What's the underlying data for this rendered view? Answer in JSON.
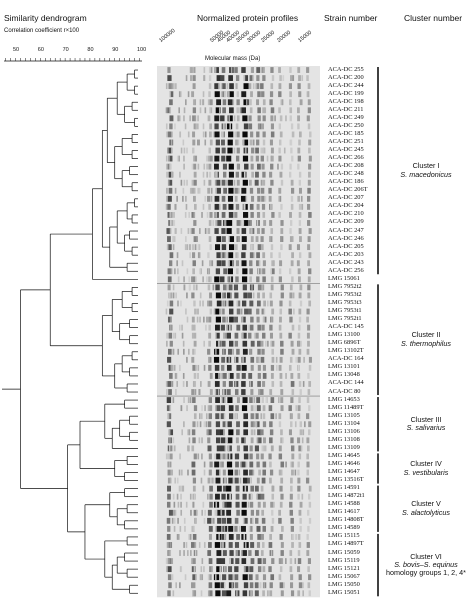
{
  "headers": {
    "dendrogram": "Similarity dendrogram",
    "correlation": "Correlation coefficient r×100",
    "profiles": "Normalized protein profiles",
    "molecular_mass": "Molecular mass (Da)",
    "strain": "Strain number",
    "cluster": "Cluster number"
  },
  "scale_ticks": [
    "50",
    "60",
    "70",
    "80",
    "90",
    "100"
  ],
  "mass_ticks": [
    "100000",
    "50000",
    "45000",
    "40000",
    "35000",
    "30000",
    "25000",
    "20000",
    "15000"
  ],
  "strains": [
    "ACA-DC 255",
    "ACA-DC 200",
    "ACA-DC 244",
    "ACA-DC 199",
    "ACA-DC 198",
    "ACA-DC 211",
    "ACA-DC 249",
    "ACA-DC 250",
    "ACA-DC 185",
    "ACA-DC 251",
    "ACA-DC 245",
    "ACA-DC 266",
    "ACA-DC 208",
    "ACA-DC 248",
    "ACA-DC 186",
    "ACA-DC 206T",
    "ACA-DC 207",
    "ACA-DC 204",
    "ACA-DC 210",
    "ACA-DC 209",
    "ACA-DC 247",
    "ACA-DC 246",
    "ACA-DC 205",
    "ACA-DC 203",
    "ACA-DC 243",
    "ACA-DC 256",
    "LMG 15061",
    "LMG 7952t2",
    "LMG 7953t2",
    "LMG 7953t3",
    "LMG 7953t1",
    "LMG 7952t1",
    "ACA-DC 145",
    "LMG 13100",
    "LMG 6896T",
    "LMG 13102T",
    "ACA-DC 164",
    "LMG 13101",
    "LMG 13048",
    "ACA-DC 144",
    "ACA-DC 80",
    "LMG 14653",
    "LMG 11489T",
    "LMG 13105",
    "LMG 13104",
    "LMG 13106",
    "LMG 13108",
    "LMG 13109",
    "LMG 14645",
    "LMG 14646",
    "LMG 14647",
    "LMG 13516T",
    "LMG 14591",
    "LMG 14872t1",
    "LMG 14588",
    "LMG 14617",
    "LMG 14808T",
    "LMG 14589",
    "LMG 15115",
    "LMG 14897T",
    "LMG 15059",
    "LMG 15119",
    "LMG 15121",
    "LMG 15067",
    "LMG 15050",
    "LMG 15051"
  ],
  "clusters": [
    {
      "name": "Cluster I",
      "species": "S. macedonicus",
      "extra": "",
      "first": 0,
      "last": 25
    },
    {
      "name": "Cluster II",
      "species": "S. thermophilus",
      "extra": "",
      "first": 27,
      "last": 40
    },
    {
      "name": "Cluster III",
      "species": "S. salivarius",
      "extra": "",
      "first": 41,
      "last": 47
    },
    {
      "name": "Cluster IV",
      "species": "S. vestibularis",
      "extra": "",
      "first": 48,
      "last": 51
    },
    {
      "name": "Cluster V",
      "species": "S. alactolyticus",
      "extra": "",
      "first": 52,
      "last": 57
    },
    {
      "name": "Cluster VI",
      "species": "S. bovis–S. equinus",
      "extra": "homology groups 1, 2, 4*",
      "first": 58,
      "last": 65
    }
  ],
  "dendrogram_merges": [
    [
      0,
      1,
      97
    ],
    [
      2,
      3,
      97
    ],
    [
      4,
      5,
      96
    ],
    [
      6,
      7,
      97
    ],
    [
      8,
      9,
      96
    ],
    [
      10,
      11,
      96
    ],
    [
      12,
      13,
      95
    ],
    [
      14,
      15,
      96
    ],
    [
      16,
      17,
      97
    ],
    [
      18,
      19,
      96
    ],
    [
      20,
      21,
      95
    ],
    [
      22,
      23,
      96
    ],
    [
      24,
      25,
      94
    ],
    [
      0,
      2,
      94
    ],
    [
      4,
      6,
      93
    ],
    [
      8,
      10,
      92
    ],
    [
      12,
      14,
      92
    ],
    [
      16,
      18,
      94
    ],
    [
      20,
      22,
      93
    ],
    [
      0,
      4,
      90
    ],
    [
      8,
      12,
      89
    ],
    [
      16,
      20,
      90
    ],
    [
      0,
      8,
      86
    ],
    [
      16,
      24,
      87
    ],
    [
      0,
      16,
      84
    ],
    [
      0,
      26,
      80
    ],
    [
      27,
      28,
      96
    ],
    [
      29,
      30,
      96
    ],
    [
      31,
      32,
      95
    ],
    [
      33,
      34,
      95
    ],
    [
      35,
      36,
      96
    ],
    [
      37,
      38,
      95
    ],
    [
      39,
      40,
      94
    ],
    [
      27,
      29,
      92
    ],
    [
      31,
      33,
      91
    ],
    [
      35,
      37,
      92
    ],
    [
      27,
      31,
      88
    ],
    [
      35,
      39,
      89
    ],
    [
      27,
      35,
      84
    ],
    [
      0,
      27,
      63
    ],
    [
      41,
      42,
      93
    ],
    [
      43,
      44,
      95
    ],
    [
      45,
      46,
      95
    ],
    [
      43,
      45,
      91
    ],
    [
      43,
      47,
      88
    ],
    [
      41,
      43,
      85
    ],
    [
      48,
      49,
      94
    ],
    [
      50,
      51,
      93
    ],
    [
      48,
      50,
      89
    ],
    [
      52,
      53,
      93
    ],
    [
      54,
      55,
      94
    ],
    [
      56,
      57,
      93
    ],
    [
      54,
      56,
      90
    ],
    [
      52,
      54,
      87
    ],
    [
      58,
      59,
      94
    ],
    [
      60,
      61,
      93
    ],
    [
      62,
      63,
      94
    ],
    [
      64,
      65,
      95
    ],
    [
      60,
      62,
      90
    ],
    [
      60,
      64,
      88
    ],
    [
      58,
      60,
      85
    ],
    [
      41,
      48,
      75
    ],
    [
      52,
      58,
      77
    ],
    [
      41,
      52,
      70
    ],
    [
      0,
      41,
      51
    ]
  ],
  "gel_bands_kda": [
    100,
    72,
    58,
    52,
    48,
    44,
    40,
    36,
    33,
    30,
    28,
    25,
    22,
    19,
    17,
    15
  ],
  "cluster_band_profiles": [
    [
      0.55,
      0.3,
      0.2,
      0.85,
      0.6,
      0.95,
      0.3,
      0.9,
      0.35,
      0.45,
      0.3,
      0.3,
      0.25,
      0.2,
      0.25,
      0.3
    ],
    [
      0.5,
      0.25,
      0.3,
      0.9,
      0.5,
      0.7,
      0.55,
      0.8,
      0.5,
      0.4,
      0.35,
      0.25,
      0.3,
      0.35,
      0.2,
      0.25
    ],
    [
      0.6,
      0.35,
      0.45,
      0.8,
      0.7,
      0.85,
      0.4,
      0.95,
      0.3,
      0.5,
      0.25,
      0.35,
      0.2,
      0.3,
      0.3,
      0.2
    ],
    [
      0.45,
      0.4,
      0.3,
      0.9,
      0.45,
      0.9,
      0.55,
      0.75,
      0.45,
      0.35,
      0.4,
      0.3,
      0.35,
      0.25,
      0.2,
      0.3
    ],
    [
      0.5,
      0.3,
      0.55,
      0.85,
      0.8,
      0.9,
      0.5,
      0.85,
      0.4,
      0.45,
      0.35,
      0.25,
      0.3,
      0.3,
      0.25,
      0.2
    ],
    [
      0.6,
      0.45,
      0.4,
      0.95,
      0.65,
      0.8,
      0.6,
      0.9,
      0.5,
      0.5,
      0.3,
      0.35,
      0.3,
      0.25,
      0.3,
      0.25
    ]
  ]
}
